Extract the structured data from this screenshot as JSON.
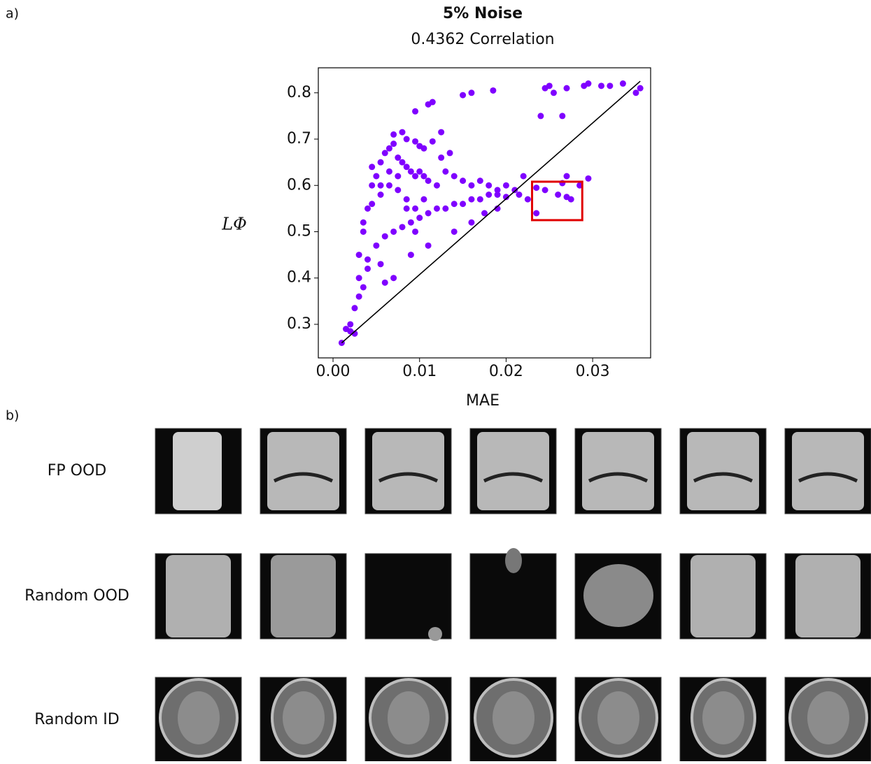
{
  "chart_data": {
    "type": "scatter",
    "title": "5% Noise",
    "subtitle": "0.4362 Correlation",
    "x_label": "MAE",
    "y_label": "LΦ",
    "xlim": [
      -0.0017,
      0.0367
    ],
    "ylim": [
      0.2275,
      0.854
    ],
    "xticks": [
      {
        "value": 0,
        "label": "0.00"
      },
      0.01,
      0.02,
      0.03
    ],
    "yticks": [
      0.3,
      0.4,
      0.5,
      0.6,
      0.7,
      0.8
    ],
    "series": [
      {
        "color": "#7f00ff",
        "x": [
          0.001,
          0.0015,
          0.002,
          0.0025,
          0.002,
          0.0025,
          0.003,
          0.0035,
          0.004,
          0.0055,
          0.006,
          0.007,
          0.009,
          0.011,
          0.014,
          0.016,
          0.0175,
          0.019,
          0.02,
          0.0215,
          0.0095,
          0.011,
          0.0115,
          0.015,
          0.016,
          0.0185,
          0.0245,
          0.025,
          0.0255,
          0.027,
          0.029,
          0.0295,
          0.031,
          0.032,
          0.0335,
          0.035,
          0.0355,
          0.024,
          0.0265,
          0.0235,
          0.0245,
          0.026,
          0.0265,
          0.027,
          0.0275,
          0.0285,
          0.0235,
          0.027,
          0.0295,
          0.022,
          0.0225,
          0.007,
          0.008,
          0.0085,
          0.0095,
          0.01,
          0.0105,
          0.0125,
          0.0135,
          0.0125,
          0.0115,
          0.003,
          0.0035,
          0.004,
          0.0045,
          0.005,
          0.0055,
          0.006,
          0.0065,
          0.007,
          0.0075,
          0.008,
          0.0085,
          0.009,
          0.0095,
          0.01,
          0.0105,
          0.011,
          0.012,
          0.013,
          0.014,
          0.015,
          0.016,
          0.017,
          0.018,
          0.019,
          0.02,
          0.021,
          0.003,
          0.004,
          0.005,
          0.006,
          0.007,
          0.008,
          0.009,
          0.01,
          0.011,
          0.012,
          0.013,
          0.014,
          0.015,
          0.016,
          0.017,
          0.018,
          0.019,
          0.0035,
          0.0045,
          0.0055,
          0.0065,
          0.0075,
          0.0085,
          0.0095,
          0.0105,
          0.0045,
          0.0055,
          0.0065,
          0.0075,
          0.0085,
          0.0095
        ],
        "values": [
          0.26,
          0.29,
          0.285,
          0.28,
          0.3,
          0.335,
          0.36,
          0.38,
          0.42,
          0.43,
          0.39,
          0.4,
          0.45,
          0.47,
          0.5,
          0.52,
          0.54,
          0.55,
          0.575,
          0.58,
          0.76,
          0.775,
          0.78,
          0.795,
          0.8,
          0.805,
          0.81,
          0.815,
          0.8,
          0.81,
          0.815,
          0.82,
          0.815,
          0.815,
          0.82,
          0.8,
          0.81,
          0.75,
          0.75,
          0.595,
          0.59,
          0.58,
          0.605,
          0.575,
          0.57,
          0.6,
          0.54,
          0.62,
          0.615,
          0.62,
          0.57,
          0.71,
          0.715,
          0.7,
          0.695,
          0.685,
          0.68,
          0.715,
          0.67,
          0.66,
          0.695,
          0.45,
          0.5,
          0.55,
          0.6,
          0.62,
          0.65,
          0.67,
          0.68,
          0.69,
          0.66,
          0.65,
          0.64,
          0.63,
          0.62,
          0.63,
          0.62,
          0.61,
          0.6,
          0.63,
          0.62,
          0.61,
          0.6,
          0.61,
          0.6,
          0.59,
          0.6,
          0.59,
          0.4,
          0.44,
          0.47,
          0.49,
          0.5,
          0.51,
          0.52,
          0.53,
          0.54,
          0.55,
          0.55,
          0.56,
          0.56,
          0.57,
          0.57,
          0.58,
          0.58,
          0.52,
          0.56,
          0.58,
          0.6,
          0.59,
          0.57,
          0.55,
          0.57,
          0.64,
          0.6,
          0.63,
          0.62,
          0.55,
          0.5
        ]
      }
    ],
    "reference_line": {
      "x": [
        0.001,
        0.0355
      ],
      "values": [
        0.26,
        0.825
      ],
      "color": "#000000"
    },
    "highlight_box": {
      "xlim": [
        0.023,
        0.0288
      ],
      "ylim": [
        0.525,
        0.608
      ],
      "color": "#e00000"
    }
  },
  "panels": {
    "a": "a)",
    "b": "b)"
  },
  "image_grid": {
    "rows": [
      "FP OOD",
      "Random OOD",
      "Random ID"
    ]
  }
}
